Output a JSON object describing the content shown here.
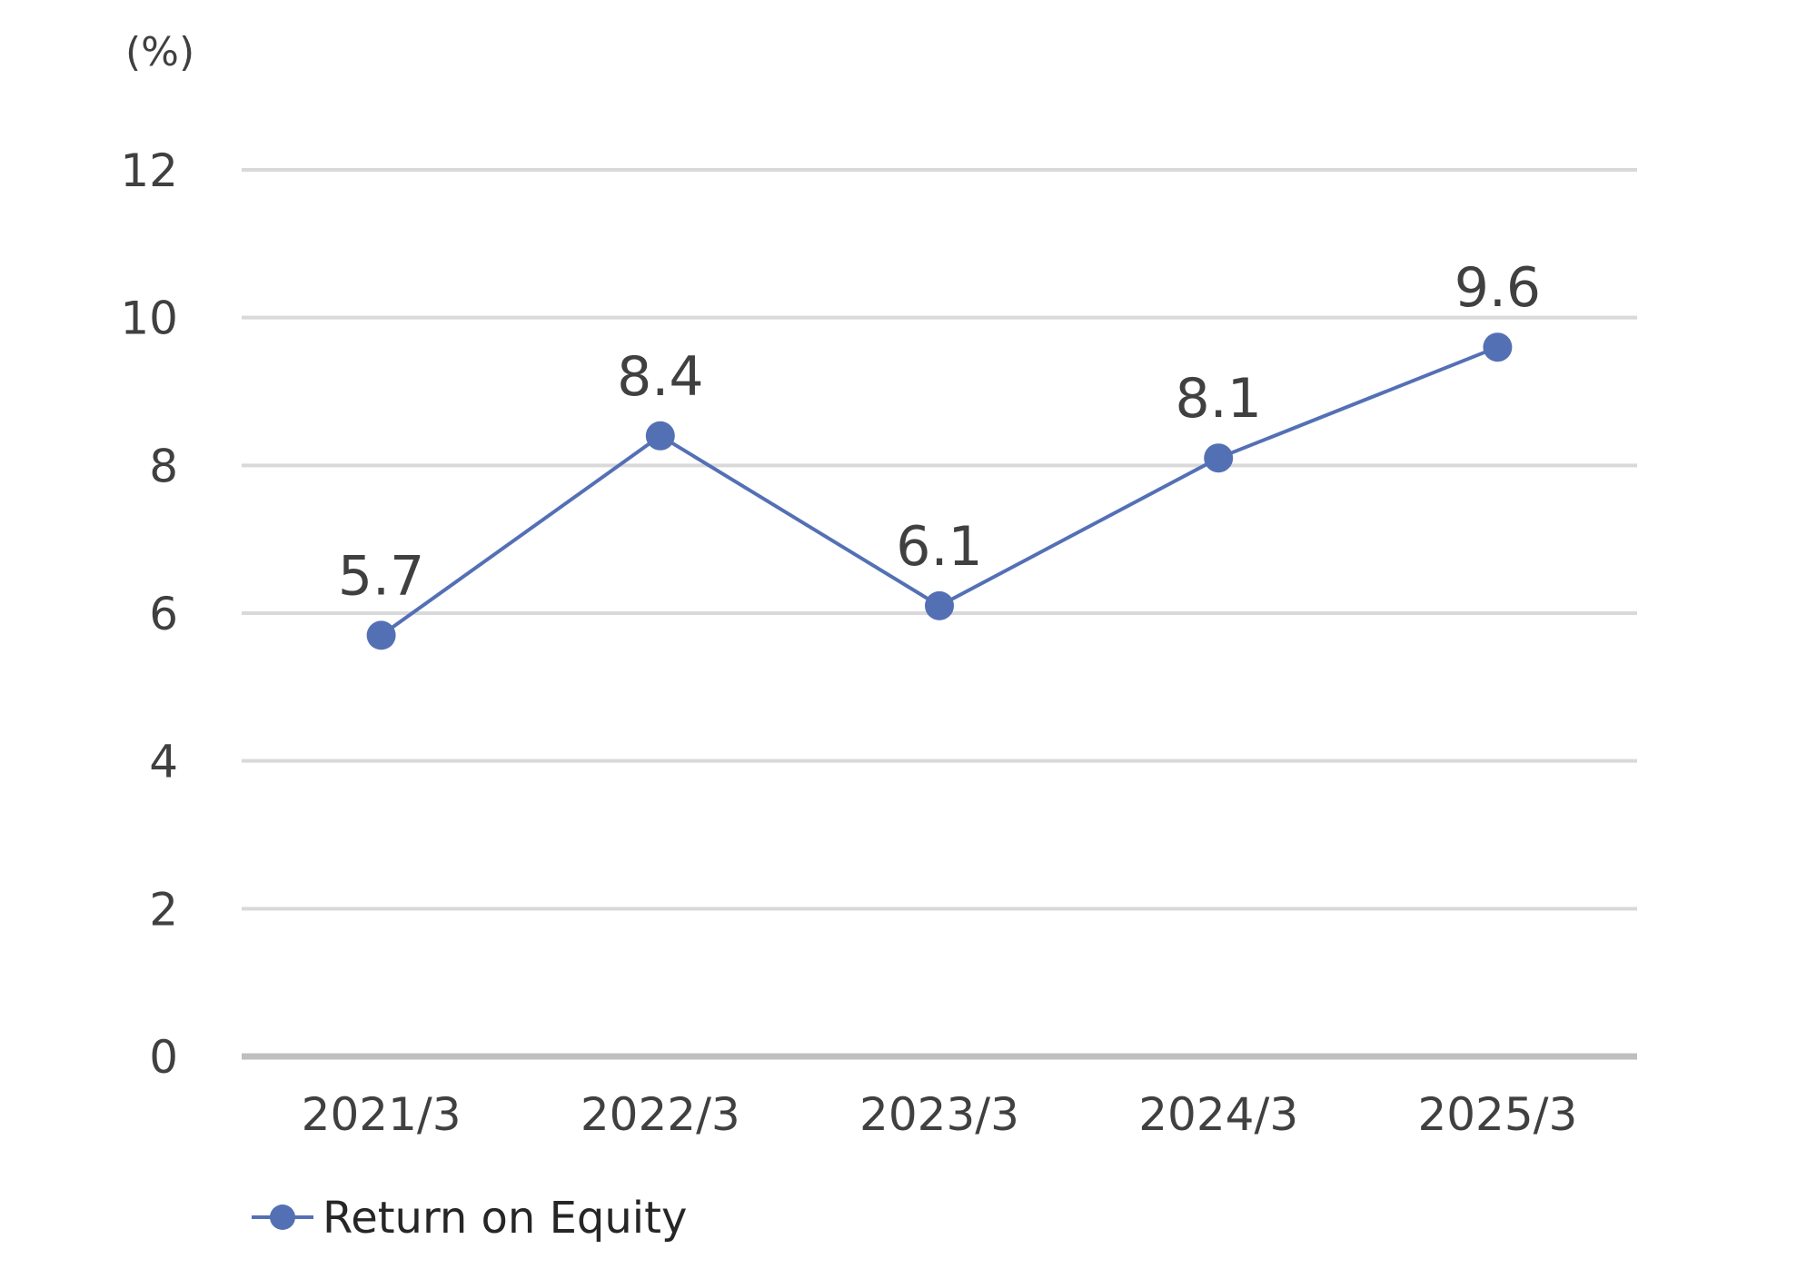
{
  "chart_data": {
    "type": "line",
    "title": "",
    "xlabel": "",
    "ylabel": "",
    "unit_label": "(%)",
    "categories": [
      "2021/3",
      "2022/3",
      "2023/3",
      "2024/3",
      "2025/3"
    ],
    "series": [
      {
        "name": "Return on Equity",
        "values": [
          5.7,
          8.4,
          6.1,
          8.1,
          9.6
        ],
        "data_labels": [
          "5.7",
          "8.4",
          "6.1",
          "8.1",
          "9.6"
        ],
        "color": "#5470b5"
      }
    ],
    "ylim": [
      0,
      12
    ],
    "yticks": [
      0,
      2,
      4,
      6,
      8,
      10,
      12
    ],
    "ytick_labels": [
      "0",
      "2",
      "4",
      "6",
      "8",
      "10",
      "12"
    ],
    "grid": true,
    "gridline_color": "#d9d9d9",
    "baseline_color": "#bfbfbf",
    "legend_position": "bottom-left"
  }
}
